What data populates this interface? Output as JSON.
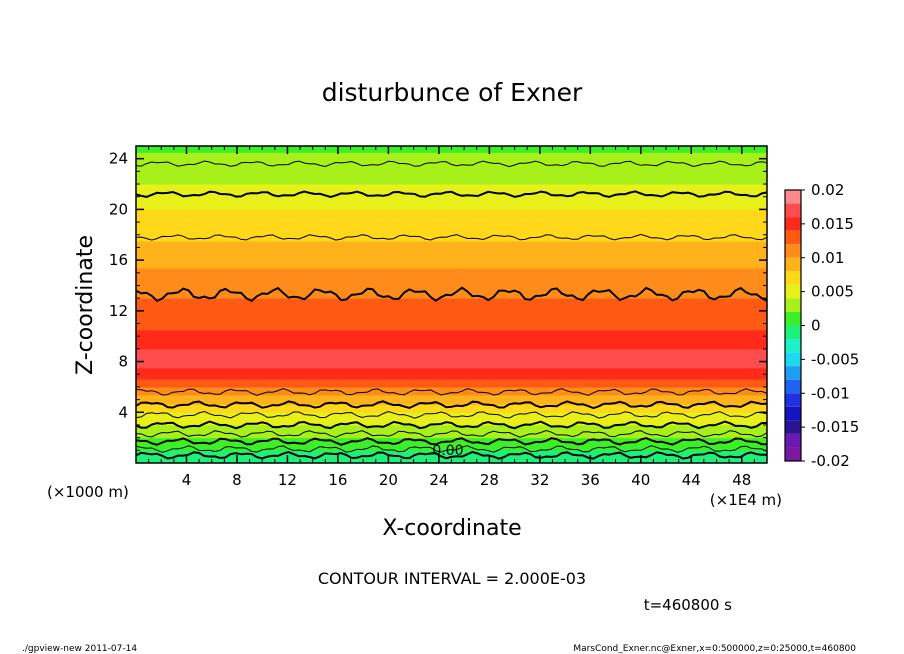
{
  "chart_data": {
    "type": "heatmap",
    "title": "disturbunce of Exner",
    "xlabel": "X-coordinate",
    "ylabel": "Z-coordinate",
    "x_unit_left": "(×1000 m)",
    "x_unit_right": "(×1E4 m)",
    "xlim": [
      0,
      50
    ],
    "ylim": [
      0,
      25
    ],
    "x_ticks": [
      "4",
      "8",
      "12",
      "16",
      "20",
      "24",
      "28",
      "32",
      "36",
      "40",
      "44",
      "48"
    ],
    "x_tick_values": [
      4,
      8,
      12,
      16,
      20,
      24,
      28,
      32,
      36,
      40,
      44,
      48
    ],
    "y_ticks": [
      "4",
      "8",
      "12",
      "16",
      "20",
      "24"
    ],
    "y_tick_values": [
      4,
      8,
      12,
      16,
      20,
      24
    ],
    "contour_interval_text": "CONTOUR INTERVAL = 2.000E-03",
    "time_text": "t=460800 s",
    "zero_label": "0.00",
    "colorbar": {
      "range": [
        -0.02,
        0.02
      ],
      "labels": [
        "0.02",
        "0.015",
        "0.01",
        "0.005",
        "0",
        "-0.005",
        "-0.01",
        "-0.015",
        "-0.02"
      ],
      "label_values": [
        0.02,
        0.015,
        0.01,
        0.005,
        0,
        -0.005,
        -0.01,
        -0.015,
        -0.02
      ],
      "levels": [
        {
          "v": 0.018,
          "color": "#ff8a8a"
        },
        {
          "v": 0.016,
          "color": "#ff4d4d"
        },
        {
          "v": 0.014,
          "color": "#ff2a1a"
        },
        {
          "v": 0.012,
          "color": "#ff5a14"
        },
        {
          "v": 0.01,
          "color": "#ff8c1a"
        },
        {
          "v": 0.008,
          "color": "#ffb21a"
        },
        {
          "v": 0.006,
          "color": "#ffd81a"
        },
        {
          "v": 0.004,
          "color": "#e8f01a"
        },
        {
          "v": 0.002,
          "color": "#a8f01a"
        },
        {
          "v": 0.0,
          "color": "#3cf028"
        },
        {
          "v": -0.002,
          "color": "#1ef07a"
        },
        {
          "v": -0.004,
          "color": "#1ef0c8"
        },
        {
          "v": -0.006,
          "color": "#1ed8f0"
        },
        {
          "v": -0.008,
          "color": "#1e9ef0"
        },
        {
          "v": -0.01,
          "color": "#1e64f0"
        },
        {
          "v": -0.012,
          "color": "#1e32e0"
        },
        {
          "v": -0.014,
          "color": "#1414c0"
        },
        {
          "v": -0.016,
          "color": "#2a1490"
        },
        {
          "v": -0.018,
          "color": "#6a1ab0"
        },
        {
          "v": -0.02,
          "color": "#7a1aa0"
        }
      ]
    },
    "profile_z": [
      0,
      1,
      2,
      3,
      4,
      5,
      6,
      7,
      8,
      9,
      10,
      11,
      12,
      13,
      14,
      16,
      18,
      20,
      22,
      24,
      25
    ],
    "profile_value": [
      -0.001,
      0.0,
      0.002,
      0.004,
      0.006,
      0.009,
      0.012,
      0.0155,
      0.0165,
      0.016,
      0.0145,
      0.0135,
      0.0125,
      0.012,
      0.011,
      0.0095,
      0.0075,
      0.006,
      0.004,
      0.0025,
      0.0015
    ],
    "contour_heights": [
      0.6,
      1.1,
      1.7,
      2.3,
      3.0,
      3.8,
      4.6,
      5.6,
      13.3,
      17.8,
      21.2,
      23.6
    ]
  },
  "footer": {
    "left": "./gpview-new   2011-07-14",
    "right": "MarsCond_Exner.nc@Exner,x=0:500000,z=0:25000,t=460800"
  }
}
